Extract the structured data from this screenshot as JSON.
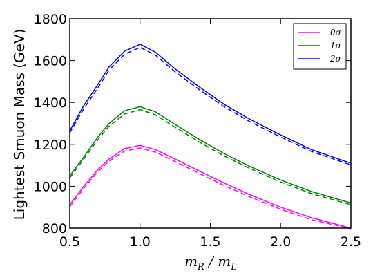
{
  "chart_data": {
    "type": "line",
    "ylabel": "Lightest Smuon Mass (GeV)",
    "xlabel": "m_R / m_L",
    "xlim": [
      0.5,
      2.5
    ],
    "ylim": [
      800,
      1800
    ],
    "xticks": [
      "0.5",
      "1.0",
      "1.5",
      "2.0",
      "2.5"
    ],
    "yticks": [
      "800",
      "1000",
      "1200",
      "1400",
      "1600",
      "1800"
    ],
    "grid": false,
    "legend_position": "top-right",
    "x": [
      0.5,
      0.6,
      0.7,
      0.78,
      0.89,
      1.0,
      1.11,
      1.25,
      1.43,
      1.6,
      1.78,
      2.0,
      2.22,
      2.5
    ],
    "series": [
      {
        "name": "0σ",
        "color": "#ff00ff",
        "solid": [
          912,
          1000,
          1080,
          1130,
          1180,
          1195,
          1175,
          1130,
          1070,
          1015,
          960,
          900,
          850,
          800
        ],
        "dashed": [
          902,
          990,
          1070,
          1120,
          1168,
          1183,
          1163,
          1118,
          1058,
          1003,
          950,
          890,
          840,
          797
        ]
      },
      {
        "name": "1σ",
        "color": "#008000",
        "solid": [
          1050,
          1140,
          1235,
          1300,
          1360,
          1380,
          1355,
          1295,
          1220,
          1155,
          1095,
          1030,
          975,
          920
        ],
        "dashed": [
          1040,
          1130,
          1222,
          1287,
          1345,
          1366,
          1341,
          1282,
          1208,
          1144,
          1085,
          1020,
          965,
          912
        ]
      },
      {
        "name": "2σ",
        "color": "#0000ff",
        "solid": [
          1265,
          1385,
          1485,
          1570,
          1645,
          1678,
          1640,
          1560,
          1470,
          1390,
          1320,
          1245,
          1175,
          1110
        ],
        "dashed": [
          1255,
          1370,
          1470,
          1555,
          1630,
          1663,
          1626,
          1546,
          1457,
          1379,
          1309,
          1235,
          1166,
          1102
        ]
      }
    ]
  }
}
